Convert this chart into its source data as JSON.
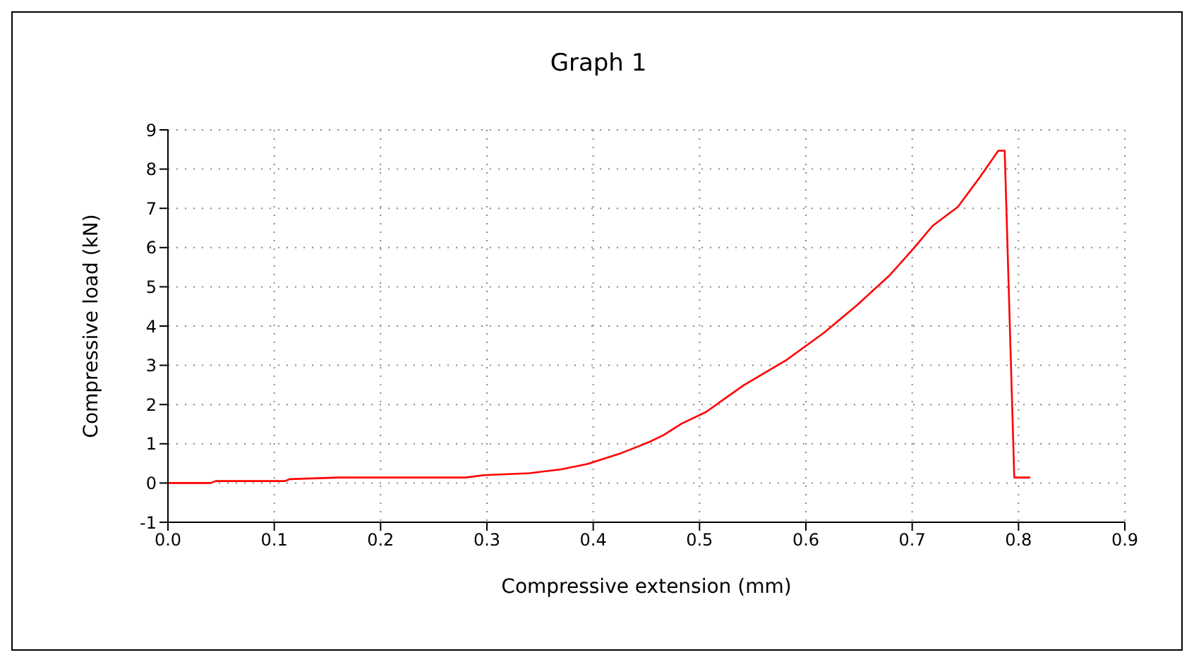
{
  "chart_data": {
    "type": "line",
    "title": "Graph 1",
    "xlabel": "Compressive extension (mm)",
    "ylabel": "Compressive load (kN)",
    "xlim": [
      0,
      0.9
    ],
    "xticks": [
      {
        "value": 0,
        "label": "0.0"
      },
      0.1,
      0.2,
      0.3,
      0.4,
      0.5,
      0.6,
      0.7,
      0.8,
      0.9
    ],
    "ylim": [
      -1,
      9
    ],
    "yticks": [
      -1,
      0,
      1,
      2,
      3,
      4,
      5,
      6,
      7,
      8,
      9
    ],
    "grid": true,
    "marker": "none",
    "line_style": "solid",
    "series": [
      {
        "color": "#ff0000",
        "x": [
          0,
          0.04,
          0.045,
          0.11,
          0.115,
          0.16,
          0.28,
          0.297,
          0.34,
          0.37,
          0.395,
          0.426,
          0.443,
          0.453,
          0.466,
          0.483,
          0.506,
          0.542,
          0.582,
          0.617,
          0.648,
          0.679,
          0.702,
          0.719,
          0.743,
          0.763,
          0.781,
          0.787,
          0.796,
          0.811
        ],
        "values": [
          0,
          0,
          0.05,
          0.05,
          0.1,
          0.14,
          0.14,
          0.2,
          0.25,
          0.35,
          0.49,
          0.76,
          0.94,
          1.05,
          1.22,
          1.51,
          1.81,
          2.5,
          3.14,
          3.83,
          4.53,
          5.3,
          6.0,
          6.55,
          7.04,
          7.77,
          8.47,
          8.47,
          0.14,
          0.14
        ]
      }
    ]
  }
}
